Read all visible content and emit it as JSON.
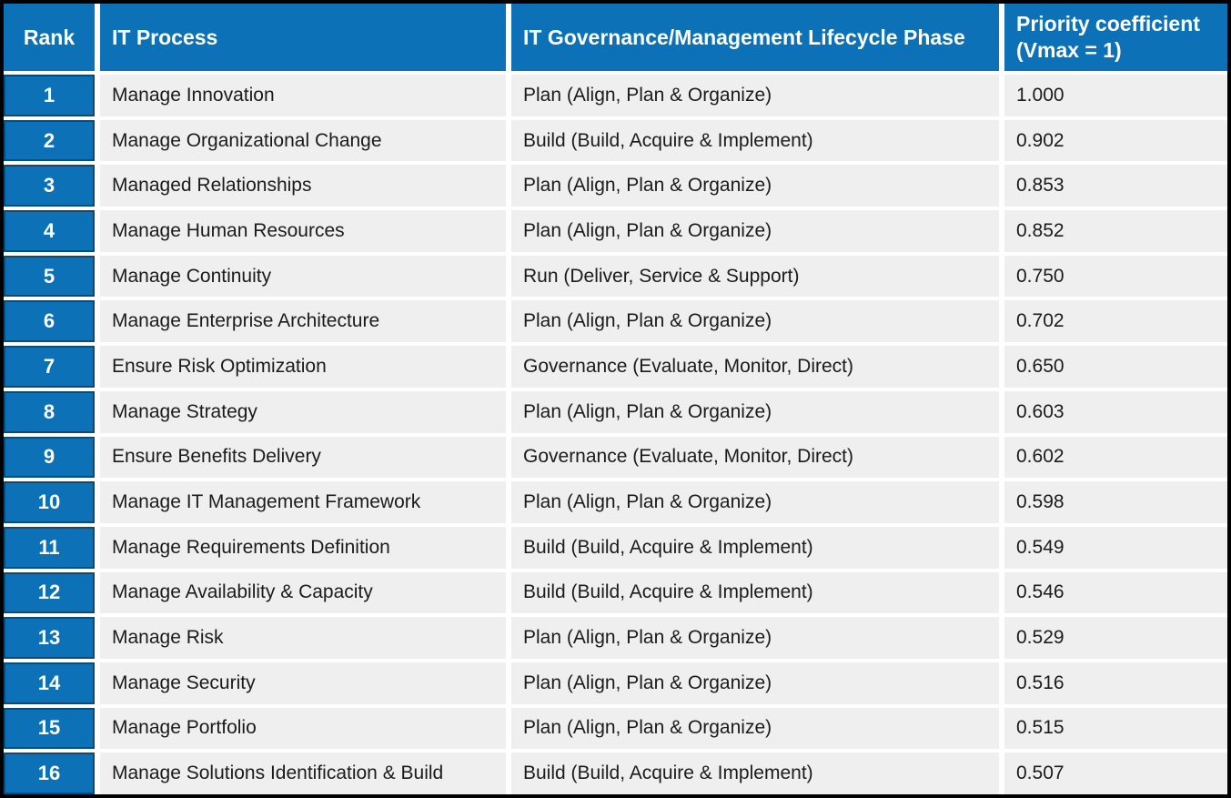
{
  "table": {
    "columns": [
      {
        "label": "Rank"
      },
      {
        "label": "IT Process"
      },
      {
        "label": "IT Governance/Management Lifecycle Phase"
      },
      {
        "label": "Priority coefficient (Vmax = 1)"
      }
    ],
    "rows": [
      {
        "rank": "1",
        "process": "Manage Innovation",
        "phase": "Plan (Align, Plan & Organize)",
        "coefficient": "1.000"
      },
      {
        "rank": "2",
        "process": "Manage Organizational Change",
        "phase": "Build (Build, Acquire & Implement)",
        "coefficient": "0.902"
      },
      {
        "rank": "3",
        "process": "Managed Relationships",
        "phase": "Plan (Align, Plan & Organize)",
        "coefficient": "0.853"
      },
      {
        "rank": "4",
        "process": "Manage Human Resources",
        "phase": "Plan (Align, Plan & Organize)",
        "coefficient": "0.852"
      },
      {
        "rank": "5",
        "process": "Manage Continuity",
        "phase": "Run (Deliver, Service & Support)",
        "coefficient": "0.750"
      },
      {
        "rank": "6",
        "process": "Manage Enterprise Architecture",
        "phase": "Plan (Align, Plan & Organize)",
        "coefficient": "0.702"
      },
      {
        "rank": "7",
        "process": "Ensure Risk Optimization",
        "phase": "Governance (Evaluate, Monitor, Direct)",
        "coefficient": "0.650"
      },
      {
        "rank": "8",
        "process": "Manage Strategy",
        "phase": "Plan (Align, Plan & Organize)",
        "coefficient": "0.603"
      },
      {
        "rank": "9",
        "process": "Ensure Benefits Delivery",
        "phase": "Governance (Evaluate, Monitor, Direct)",
        "coefficient": "0.602"
      },
      {
        "rank": "10",
        "process": "Manage IT Management Framework",
        "phase": "Plan (Align, Plan & Organize)",
        "coefficient": "0.598"
      },
      {
        "rank": "11",
        "process": "Manage Requirements Definition",
        "phase": "Build (Build, Acquire & Implement)",
        "coefficient": "0.549"
      },
      {
        "rank": "12",
        "process": "Manage Availability & Capacity",
        "phase": "Build (Build, Acquire & Implement)",
        "coefficient": "0.546"
      },
      {
        "rank": "13",
        "process": "Manage Risk",
        "phase": "Plan (Align, Plan & Organize)",
        "coefficient": "0.529"
      },
      {
        "rank": "14",
        "process": "Manage Security",
        "phase": "Plan (Align, Plan & Organize)",
        "coefficient": "0.516"
      },
      {
        "rank": "15",
        "process": "Manage Portfolio",
        "phase": "Plan (Align, Plan & Organize)",
        "coefficient": "0.515"
      },
      {
        "rank": "16",
        "process": "Manage Solutions Identification & Build",
        "phase": "Build (Build, Acquire & Implement)",
        "coefficient": "0.507"
      }
    ],
    "colors": {
      "header_blue": "#0c71b6",
      "rank_cell_border": "#0e4b74",
      "row_background": "#efefef",
      "frame_border": "#000000",
      "header_text": "#ffffff",
      "body_text": "#1b1b1b"
    }
  },
  "chart_data": {
    "type": "table",
    "title": "IT process prioritization ranking",
    "columns": [
      "Rank",
      "IT Process",
      "IT Governance/Management Lifecycle Phase",
      "Priority coefficient (Vmax = 1)"
    ],
    "rows": [
      [
        1,
        "Manage Innovation",
        "Plan (Align, Plan & Organize)",
        1.0
      ],
      [
        2,
        "Manage Organizational Change",
        "Build (Build, Acquire & Implement)",
        0.902
      ],
      [
        3,
        "Managed Relationships",
        "Plan (Align, Plan & Organize)",
        0.853
      ],
      [
        4,
        "Manage Human Resources",
        "Plan (Align, Plan & Organize)",
        0.852
      ],
      [
        5,
        "Manage Continuity",
        "Run (Deliver, Service & Support)",
        0.75
      ],
      [
        6,
        "Manage Enterprise Architecture",
        "Plan (Align, Plan & Organize)",
        0.702
      ],
      [
        7,
        "Ensure Risk Optimization",
        "Governance (Evaluate, Monitor, Direct)",
        0.65
      ],
      [
        8,
        "Manage Strategy",
        "Plan (Align, Plan & Organize)",
        0.603
      ],
      [
        9,
        "Ensure Benefits Delivery",
        "Governance (Evaluate, Monitor, Direct)",
        0.602
      ],
      [
        10,
        "Manage IT Management Framework",
        "Plan (Align, Plan & Organize)",
        0.598
      ],
      [
        11,
        "Manage Requirements Definition",
        "Build (Build, Acquire & Implement)",
        0.549
      ],
      [
        12,
        "Manage Availability & Capacity",
        "Build (Build, Acquire & Implement)",
        0.546
      ],
      [
        13,
        "Manage Risk",
        "Plan (Align, Plan & Organize)",
        0.529
      ],
      [
        14,
        "Manage Security",
        "Plan (Align, Plan & Organize)",
        0.516
      ],
      [
        15,
        "Manage Portfolio",
        "Plan (Align, Plan & Organize)",
        0.515
      ],
      [
        16,
        "Manage Solutions Identification & Build",
        "Build (Build, Acquire & Implement)",
        0.507
      ]
    ]
  }
}
